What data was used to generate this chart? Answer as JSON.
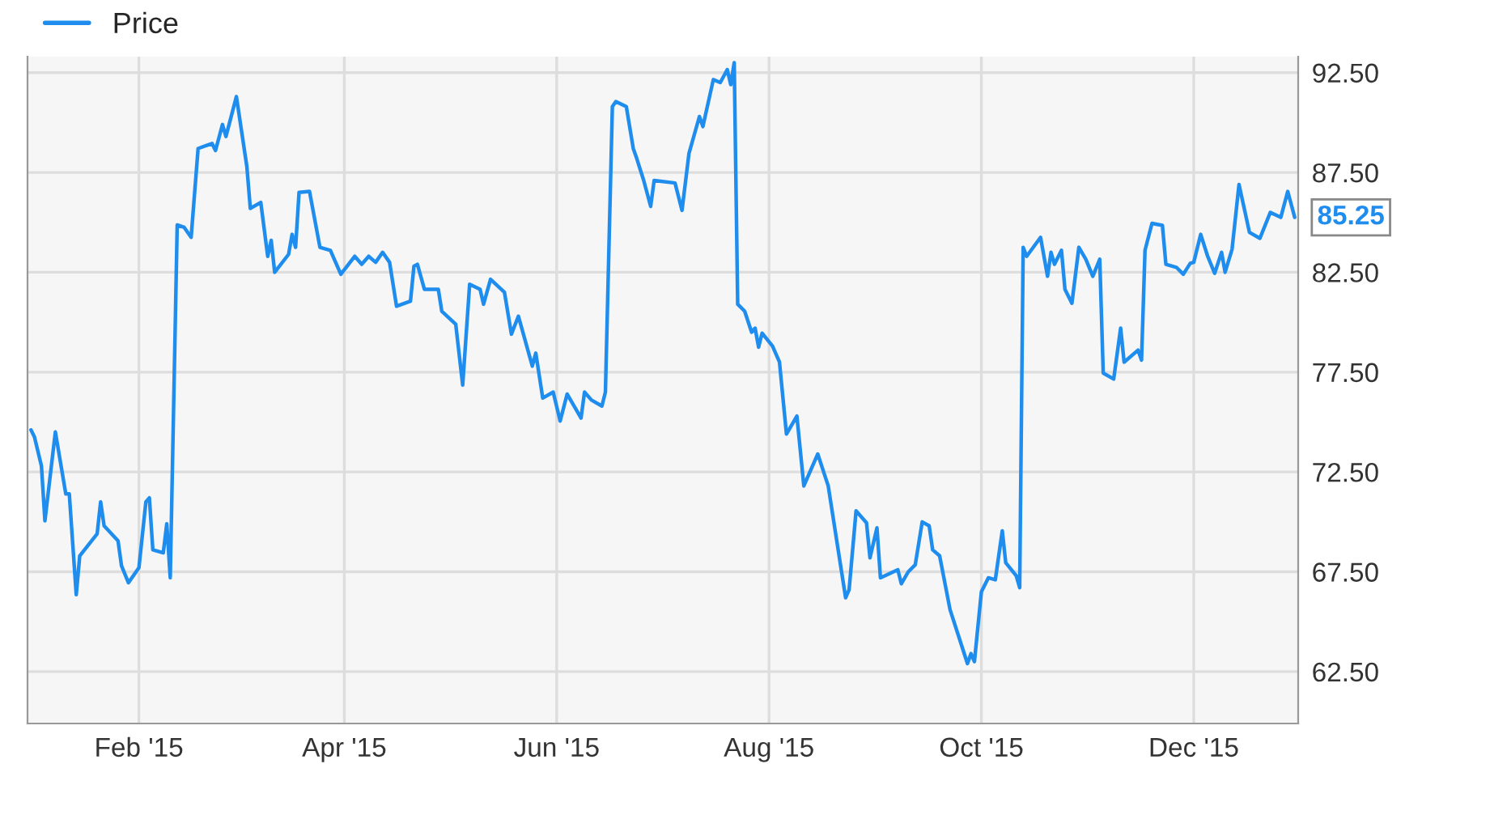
{
  "chart_data": {
    "type": "line",
    "series": [
      {
        "name": "Price",
        "color": "#1f8ded",
        "x": [
          "2015-01-01",
          "2015-01-02",
          "2015-01-04",
          "2015-01-05",
          "2015-01-08",
          "2015-01-11",
          "2015-01-12",
          "2015-01-14",
          "2015-01-15",
          "2015-01-20",
          "2015-01-21",
          "2015-01-22",
          "2015-01-26",
          "2015-01-27",
          "2015-01-29",
          "2015-02-01",
          "2015-02-03",
          "2015-02-04",
          "2015-02-05",
          "2015-02-08",
          "2015-02-09",
          "2015-02-10",
          "2015-02-12",
          "2015-02-14",
          "2015-02-16",
          "2015-02-18",
          "2015-02-22",
          "2015-02-23",
          "2015-02-25",
          "2015-02-26",
          "2015-03-01",
          "2015-03-04",
          "2015-03-05",
          "2015-03-08",
          "2015-03-10",
          "2015-03-11",
          "2015-03-12",
          "2015-03-16",
          "2015-03-17",
          "2015-03-18",
          "2015-03-19",
          "2015-03-22",
          "2015-03-25",
          "2015-03-28",
          "2015-03-31",
          "2015-04-04",
          "2015-04-06",
          "2015-04-08",
          "2015-04-10",
          "2015-04-12",
          "2015-04-14",
          "2015-04-16",
          "2015-04-20",
          "2015-04-21",
          "2015-04-22",
          "2015-04-24",
          "2015-04-28",
          "2015-04-29",
          "2015-05-03",
          "2015-05-05",
          "2015-05-07",
          "2015-05-10",
          "2015-05-11",
          "2015-05-13",
          "2015-05-17",
          "2015-05-19",
          "2015-05-21",
          "2015-05-25",
          "2015-05-26",
          "2015-05-28",
          "2015-05-31",
          "2015-06-02",
          "2015-06-04",
          "2015-06-08",
          "2015-06-09",
          "2015-06-11",
          "2015-06-14",
          "2015-06-15",
          "2015-06-17",
          "2015-06-18",
          "2015-06-21",
          "2015-06-23",
          "2015-06-24",
          "2015-06-26",
          "2015-06-28",
          "2015-06-29",
          "2015-07-05",
          "2015-07-07",
          "2015-07-09",
          "2015-07-12",
          "2015-07-13",
          "2015-07-16",
          "2015-07-18",
          "2015-07-20",
          "2015-07-21",
          "2015-07-22",
          "2015-07-23",
          "2015-07-25",
          "2015-07-27",
          "2015-07-28",
          "2015-07-29",
          "2015-07-30",
          "2015-08-02",
          "2015-08-04",
          "2015-08-06",
          "2015-08-09",
          "2015-08-11",
          "2015-08-15",
          "2015-08-18",
          "2015-08-23",
          "2015-08-24",
          "2015-08-26",
          "2015-08-29",
          "2015-08-30",
          "2015-09-01",
          "2015-09-02",
          "2015-09-07",
          "2015-09-08",
          "2015-09-10",
          "2015-09-12",
          "2015-09-14",
          "2015-09-16",
          "2015-09-17",
          "2015-09-19",
          "2015-09-22",
          "2015-09-27",
          "2015-09-28",
          "2015-09-29",
          "2015-10-01",
          "2015-10-03",
          "2015-10-05",
          "2015-10-07",
          "2015-10-08",
          "2015-10-11",
          "2015-10-12",
          "2015-10-13",
          "2015-10-14",
          "2015-10-18",
          "2015-10-20",
          "2015-10-21",
          "2015-10-22",
          "2015-10-24",
          "2015-10-25",
          "2015-10-27",
          "2015-10-29",
          "2015-10-31",
          "2015-11-02",
          "2015-11-04",
          "2015-11-05",
          "2015-11-08",
          "2015-11-10",
          "2015-11-11",
          "2015-11-15",
          "2015-11-16",
          "2015-11-17",
          "2015-11-19",
          "2015-11-22",
          "2015-11-23",
          "2015-11-26",
          "2015-11-28",
          "2015-11-30",
          "2015-12-01",
          "2015-12-03",
          "2015-12-05",
          "2015-12-07",
          "2015-12-09",
          "2015-12-10",
          "2015-12-12",
          "2015-12-14",
          "2015-12-17",
          "2015-12-20",
          "2015-12-23",
          "2015-12-26",
          "2015-12-28",
          "2015-12-30"
        ],
        "values": [
          74.6,
          74.25,
          72.8,
          70.05,
          74.5,
          71.4,
          71.4,
          66.35,
          68.3,
          69.4,
          71.0,
          69.8,
          69.05,
          67.8,
          66.95,
          67.7,
          71.0,
          71.2,
          68.6,
          68.45,
          69.9,
          67.2,
          84.87,
          84.75,
          84.25,
          88.7,
          88.95,
          88.6,
          89.9,
          89.3,
          91.3,
          87.8,
          85.7,
          86.0,
          83.3,
          84.1,
          82.5,
          83.4,
          84.4,
          83.75,
          86.5,
          86.55,
          83.75,
          83.6,
          82.4,
          83.3,
          82.9,
          83.3,
          83.0,
          83.5,
          83.0,
          80.8,
          81.05,
          82.8,
          82.9,
          81.65,
          81.65,
          80.55,
          79.9,
          76.85,
          81.9,
          81.65,
          80.9,
          82.15,
          81.5,
          79.4,
          80.3,
          77.8,
          78.45,
          76.2,
          76.5,
          75.05,
          76.4,
          75.2,
          76.5,
          76.1,
          75.8,
          76.5,
          90.8,
          91.05,
          90.8,
          88.7,
          88.2,
          87.1,
          85.8,
          87.1,
          86.97,
          85.6,
          88.45,
          90.3,
          89.8,
          92.15,
          92.0,
          92.65,
          91.9,
          93.0,
          80.9,
          80.55,
          79.5,
          79.7,
          78.75,
          79.45,
          78.8,
          78.0,
          74.4,
          75.3,
          71.8,
          73.4,
          71.8,
          66.2,
          66.6,
          70.55,
          69.95,
          68.2,
          69.7,
          67.2,
          67.6,
          66.9,
          67.5,
          67.85,
          70.0,
          69.8,
          68.6,
          68.3,
          65.6,
          62.9,
          63.4,
          63.0,
          66.5,
          67.2,
          67.1,
          69.55,
          67.95,
          67.3,
          66.7,
          83.75,
          83.3,
          84.25,
          82.3,
          83.5,
          82.9,
          83.6,
          81.65,
          80.95,
          83.75,
          83.15,
          82.3,
          83.15,
          77.45,
          77.15,
          79.7,
          78.0,
          78.6,
          78.1,
          83.6,
          84.95,
          84.85,
          82.9,
          82.75,
          82.4,
          82.95,
          83.0,
          84.4,
          83.3,
          82.45,
          83.5,
          82.5,
          83.65,
          86.9,
          84.5,
          84.2,
          85.5,
          85.25,
          86.55,
          85.25
        ]
      }
    ],
    "annotations": [
      {
        "text": "85.25",
        "x": "2015-12-30",
        "y": 85.25
      }
    ],
    "xlim": [
      "2014-12-31",
      "2015-12-31"
    ],
    "xticks": [
      {
        "value": "2015-02-01",
        "label": "Feb '15"
      },
      {
        "value": "2015-04-01",
        "label": "Apr '15"
      },
      {
        "value": "2015-06-01",
        "label": "Jun '15"
      },
      {
        "value": "2015-08-01",
        "label": "Aug '15"
      },
      {
        "value": "2015-10-01",
        "label": "Oct '15"
      },
      {
        "value": "2015-12-01",
        "label": "Dec '15"
      }
    ],
    "ylim": [
      59.9,
      93.3
    ],
    "yticks": [
      {
        "value": 62.5,
        "label": "62.50"
      },
      {
        "value": 67.5,
        "label": "67.50"
      },
      {
        "value": 72.5,
        "label": "72.50"
      },
      {
        "value": 77.5,
        "label": "77.50"
      },
      {
        "value": 82.5,
        "label": "82.50"
      },
      {
        "value": 87.5,
        "label": "87.50"
      },
      {
        "value": 92.5,
        "label": "92.50"
      }
    ],
    "grid": true,
    "legend": "top left",
    "marker": "none",
    "line_style": "solid"
  }
}
